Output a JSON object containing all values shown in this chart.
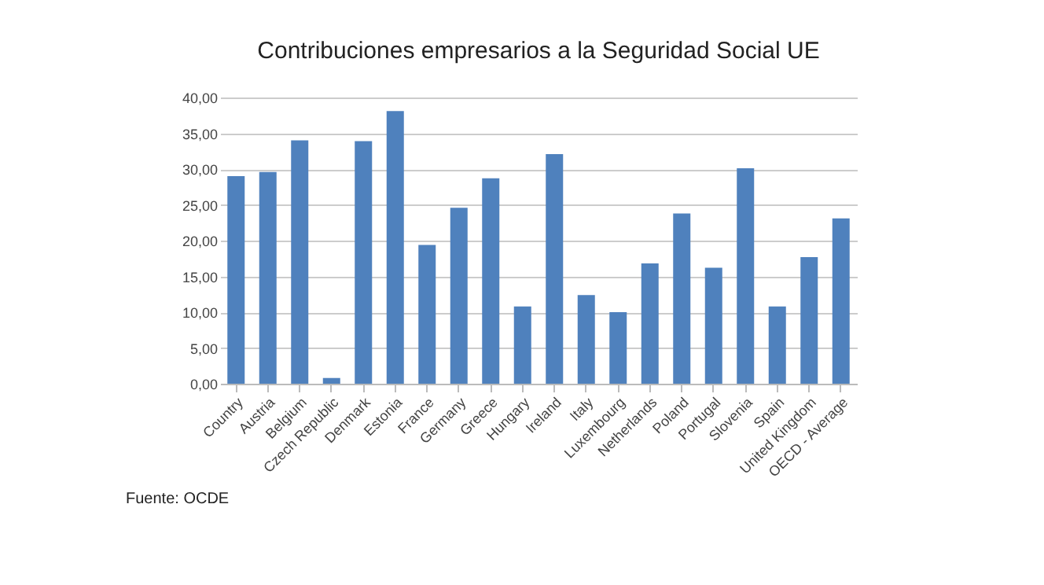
{
  "chart_data": {
    "type": "bar",
    "title": "Contribuciones empresarios a la Seguridad Social UE",
    "categories": [
      "Country",
      "Austria",
      "Belgium",
      "Czech Republic",
      "Denmark",
      "Estonia",
      "France",
      "Germany",
      "Greece",
      "Hungary",
      "Ireland",
      "Italy",
      "Luxembourg",
      "Netherlands",
      "Poland",
      "Portugal",
      "Slovenia",
      "Spain",
      "United Kingdom",
      "OECD - Average"
    ],
    "values": [
      29.0,
      29.6,
      34.0,
      0.8,
      33.9,
      38.1,
      19.4,
      24.6,
      28.7,
      10.8,
      32.1,
      12.4,
      10.0,
      16.8,
      23.8,
      16.2,
      30.1,
      10.8,
      17.7,
      23.1
    ],
    "color": "#4f81bd",
    "ylim": [
      0,
      40
    ],
    "yticks": [
      {
        "value": 0,
        "label": "0,00"
      },
      {
        "value": 5,
        "label": "5,00"
      },
      {
        "value": 10,
        "label": "10,00"
      },
      {
        "value": 15,
        "label": "15,00"
      },
      {
        "value": 20,
        "label": "20,00"
      },
      {
        "value": 25,
        "label": "25,00"
      },
      {
        "value": 30,
        "label": "30,00"
      },
      {
        "value": 35,
        "label": "35,00"
      },
      {
        "value": 40,
        "label": "40,00"
      }
    ],
    "grid": "y",
    "annotations": [
      "Fuente: OCDE"
    ]
  }
}
